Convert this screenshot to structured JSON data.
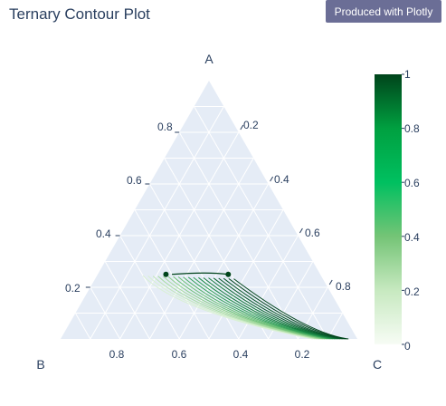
{
  "header": {
    "title": "Ternary Contour Plot",
    "plotly_button": "Produced with Plotly"
  },
  "chart_data": {
    "type": "ternary-contour",
    "title": "Ternary Contour Plot",
    "axes": {
      "a": {
        "title": "A",
        "ticks": [
          "0.8",
          "0.6",
          "0.4",
          "0.2"
        ]
      },
      "b": {
        "title": "B",
        "ticks": [
          "0.8",
          "0.6",
          "0.4",
          "0.2"
        ]
      },
      "c": {
        "title": "C",
        "ticks": [
          "0.2",
          "0.4",
          "0.6",
          "0.8"
        ]
      }
    },
    "background_color": "#e5ecf6",
    "grid": true,
    "colorscale": "Greens",
    "colorbar": {
      "ticks": [
        "1",
        "0.8",
        "0.6",
        "0.4",
        "0.2",
        "0"
      ],
      "range": [
        0,
        1
      ],
      "placement": "right"
    },
    "points": [
      {
        "a": 0.25,
        "b": 0.52,
        "c": 0.23
      },
      {
        "a": 0.25,
        "b": 0.31,
        "c": 0.44
      }
    ],
    "contour_levels": [
      0.05,
      0.1,
      0.15,
      0.2,
      0.25,
      0.3,
      0.35,
      0.4,
      0.45,
      0.5,
      0.55,
      0.6,
      0.65,
      0.7,
      0.75,
      0.8,
      0.85,
      0.9,
      0.95
    ]
  }
}
